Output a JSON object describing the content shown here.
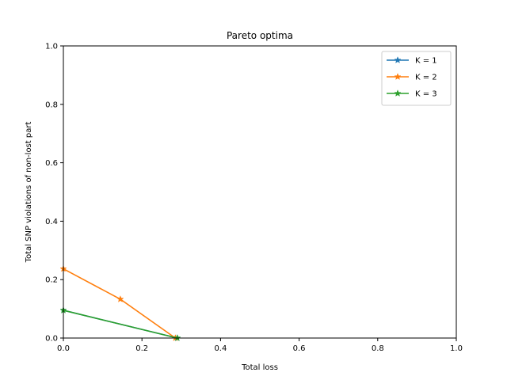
{
  "chart_data": {
    "type": "line",
    "title": "Pareto optima",
    "xlabel": "Total loss",
    "ylabel": "Total SNP violations of non-lost part",
    "xlim": [
      0,
      1
    ],
    "ylim": [
      0,
      1
    ],
    "xticks": [
      "0.0",
      "0.2",
      "0.4",
      "0.6",
      "0.8",
      "1.0"
    ],
    "yticks": [
      "0.0",
      "0.2",
      "0.4",
      "0.6",
      "0.8",
      "1.0"
    ],
    "grid": false,
    "legend_position": "top-right",
    "marker": "star",
    "series": [
      {
        "name": "K = 1",
        "color": "#1f77b4",
        "x": [
          0.0,
          0.29
        ],
        "y": [
          0.095,
          0.0
        ]
      },
      {
        "name": "K = 2",
        "color": "#ff7f0e",
        "x": [
          0.0,
          0.145,
          0.285
        ],
        "y": [
          0.237,
          0.133,
          0.0
        ]
      },
      {
        "name": "K = 3",
        "color": "#2ca02c",
        "x": [
          0.0,
          0.29
        ],
        "y": [
          0.095,
          0.0
        ]
      }
    ]
  }
}
